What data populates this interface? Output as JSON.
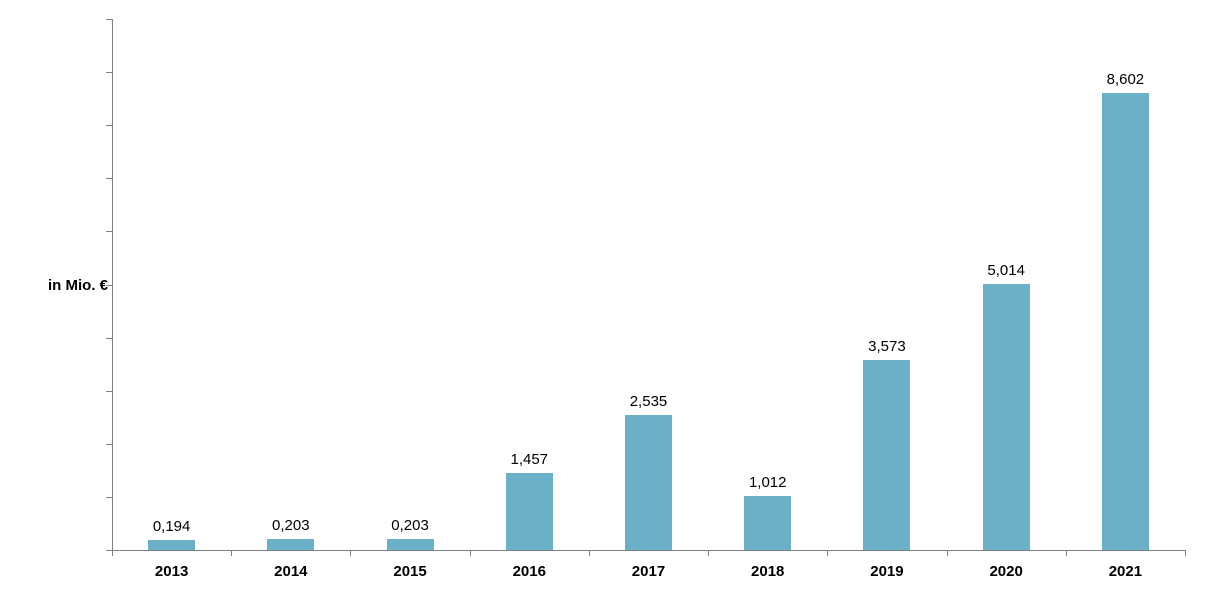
{
  "chart_data": {
    "type": "bar",
    "title": "",
    "ylabel": "in Mio. €",
    "xlabel": "",
    "categories": [
      "2013",
      "2014",
      "2015",
      "2016",
      "2017",
      "2018",
      "2019",
      "2020",
      "2021"
    ],
    "values": [
      0.194,
      0.203,
      0.203,
      1.457,
      2.535,
      1.012,
      3.573,
      5.014,
      8.602
    ],
    "value_labels": [
      "0,194",
      "0,203",
      "0,203",
      "1,457",
      "2,535",
      "1,012",
      "3,573",
      "5,014",
      "8,602"
    ],
    "ylim": [
      0,
      10
    ],
    "y_tick_step": 1,
    "y_tick_labels_visible": false,
    "grid": false,
    "legend": "none",
    "colors": {
      "bar": "#6AB0C7",
      "axis": "#808080",
      "text": "#000000",
      "background": "#ffffff"
    }
  }
}
